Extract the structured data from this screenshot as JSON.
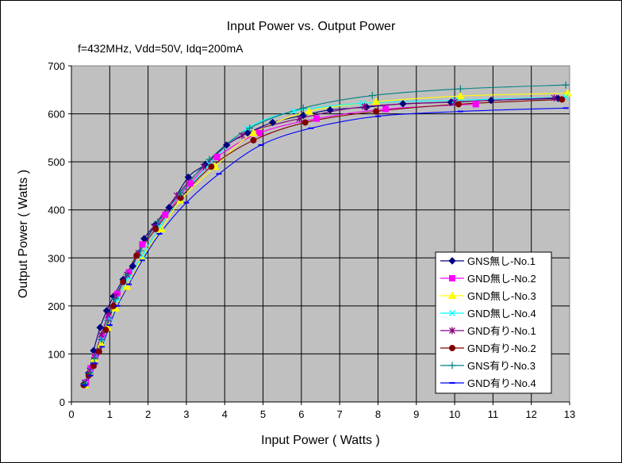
{
  "chart_data": {
    "type": "scatter",
    "title": "Input Power vs. Output Power",
    "subtitle": "f=432MHz, Vdd=50V, Idq=200mA",
    "xlabel": "Input Power ( Watts )",
    "ylabel": "Output Power ( Watts )",
    "xlim": [
      0,
      13
    ],
    "ylim": [
      0,
      700
    ],
    "xticks": [
      "0",
      "1",
      "2",
      "3",
      "4",
      "5",
      "6",
      "7",
      "8",
      "9",
      "10",
      "11",
      "12",
      "13"
    ],
    "yticks": [
      "0",
      "100",
      "200",
      "300",
      "400",
      "500",
      "600",
      "700"
    ],
    "grid": true,
    "legend_position": "lower-right",
    "plot_bg": "#c0c0c0",
    "series": [
      {
        "name": "GNS無し-No.1",
        "color": "#000080",
        "marker": "diamond",
        "x": [
          0.33,
          0.45,
          0.58,
          0.75,
          0.92,
          1.1,
          1.35,
          1.6,
          1.9,
          2.2,
          2.55,
          3.05,
          3.5,
          4.05,
          4.6,
          5.25,
          6.05,
          6.75,
          7.7,
          8.65,
          9.9,
          10.95,
          12.7
        ],
        "y": [
          38,
          60,
          107,
          155,
          190,
          220,
          255,
          283,
          340,
          370,
          405,
          468,
          495,
          535,
          560,
          582,
          597,
          608,
          614,
          621,
          624,
          628,
          632
        ]
      },
      {
        "name": "GND無し-No.2",
        "color": "#ff00ff",
        "marker": "square",
        "x": [
          0.38,
          0.5,
          0.62,
          0.8,
          0.98,
          1.2,
          1.5,
          1.85,
          2.45,
          3.1,
          3.8,
          4.9,
          6.4,
          8.2,
          10.55
        ],
        "y": [
          40,
          70,
          95,
          135,
          175,
          225,
          270,
          328,
          390,
          455,
          510,
          560,
          590,
          610,
          620
        ]
      },
      {
        "name": "GND無し-No.3",
        "color": "#ffff00",
        "marker": "triangle",
        "x": [
          0.35,
          0.48,
          0.6,
          0.78,
          0.95,
          1.15,
          1.45,
          1.85,
          2.35,
          2.85,
          3.75,
          4.75,
          6.2,
          7.95,
          10.15,
          12.95
        ],
        "y": [
          35,
          60,
          90,
          120,
          155,
          195,
          240,
          300,
          360,
          420,
          490,
          560,
          605,
          625,
          637,
          643
        ]
      },
      {
        "name": "GND無し-No.4",
        "color": "#00ffff",
        "marker": "x",
        "x": [
          0.36,
          0.5,
          0.62,
          0.8,
          1.0,
          1.2,
          1.5,
          1.85,
          2.3,
          2.85,
          3.6,
          4.6,
          5.8,
          7.6,
          10.0,
          12.9
        ],
        "y": [
          38,
          65,
          95,
          130,
          175,
          215,
          260,
          305,
          365,
          425,
          495,
          570,
          605,
          622,
          628,
          635
        ]
      },
      {
        "name": "GND有り-No.1",
        "color": "#800080",
        "marker": "star",
        "x": [
          0.35,
          0.48,
          0.6,
          0.78,
          0.95,
          1.15,
          1.45,
          1.75,
          2.15,
          2.75,
          3.45,
          4.45,
          5.95,
          7.65,
          10.0,
          12.6
        ],
        "y": [
          40,
          65,
          95,
          140,
          180,
          220,
          265,
          310,
          365,
          430,
          490,
          555,
          590,
          615,
          625,
          633
        ]
      },
      {
        "name": "GND有り-No.2",
        "color": "#800000",
        "marker": "circle",
        "x": [
          0.32,
          0.45,
          0.58,
          0.72,
          0.9,
          1.1,
          1.35,
          1.7,
          2.2,
          2.85,
          3.65,
          4.75,
          6.1,
          7.95,
          10.1,
          12.8
        ],
        "y": [
          35,
          55,
          75,
          105,
          150,
          200,
          250,
          305,
          360,
          425,
          490,
          545,
          582,
          605,
          620,
          630
        ]
      },
      {
        "name": "GNS有り-No.3",
        "color": "#008080",
        "marker": "plus",
        "x": [
          0.35,
          0.48,
          0.6,
          0.78,
          0.95,
          1.15,
          1.45,
          1.8,
          2.25,
          2.85,
          3.6,
          4.65,
          6.05,
          7.85,
          10.15,
          12.9
        ],
        "y": [
          38,
          60,
          90,
          130,
          170,
          215,
          265,
          315,
          375,
          435,
          505,
          570,
          612,
          638,
          652,
          660
        ]
      },
      {
        "name": "GND有り-No.4",
        "color": "#0000ff",
        "marker": "dash",
        "x": [
          0.35,
          0.5,
          0.62,
          0.8,
          1.0,
          1.2,
          1.5,
          1.85,
          2.3,
          3.0,
          3.85,
          4.95,
          6.25,
          8.0,
          10.15,
          12.9
        ],
        "y": [
          35,
          55,
          80,
          115,
          160,
          200,
          245,
          295,
          350,
          415,
          475,
          535,
          570,
          595,
          605,
          612
        ]
      }
    ]
  }
}
